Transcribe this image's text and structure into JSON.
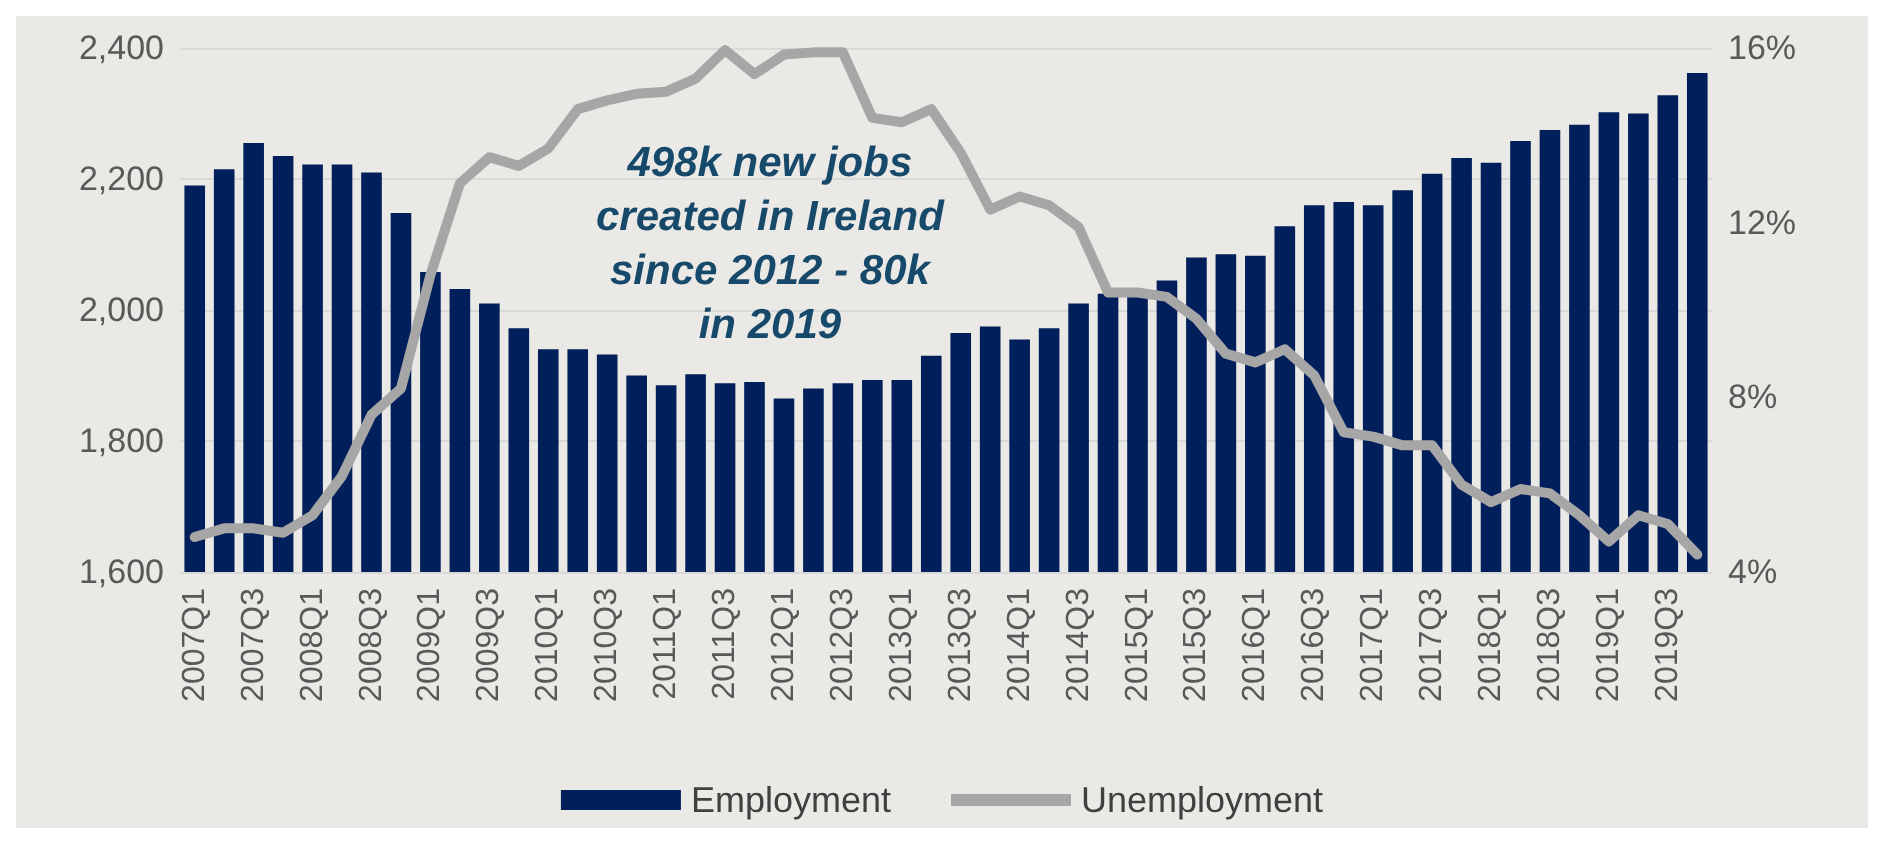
{
  "chart_data": {
    "type": "bar",
    "categories": [
      "2007Q1",
      null,
      "2007Q3",
      null,
      "2008Q1",
      null,
      "2008Q3",
      null,
      "2009Q1",
      null,
      "2009Q3",
      null,
      "2010Q1",
      null,
      "2010Q3",
      null,
      "2011Q1",
      null,
      "2011Q3",
      null,
      "2012Q1",
      null,
      "2012Q3",
      null,
      "2013Q1",
      null,
      "2013Q3",
      null,
      "2014Q1",
      null,
      "2014Q3",
      null,
      "2015Q1",
      null,
      "2015Q3",
      null,
      "2016Q1",
      null,
      "2016Q3",
      null,
      "2017Q1",
      null,
      "2017Q3",
      null,
      "2018Q1",
      null,
      "2018Q3",
      null,
      "2019Q1",
      null,
      "2019Q3",
      null
    ],
    "series": [
      {
        "name": "Employment",
        "color": "#001f5b",
        "values": [
          2190,
          2215,
          2255,
          2235,
          2222,
          2222,
          2210,
          2148,
          2058,
          2032,
          2010,
          1972,
          1940,
          1940,
          1932,
          1900,
          1885,
          1902,
          1888,
          1890,
          1865,
          1880,
          1888,
          1893,
          1893,
          1930,
          1965,
          1975,
          1955,
          1972,
          2010,
          2025,
          2025,
          2045,
          2080,
          2085,
          2083,
          2128,
          2160,
          2165,
          2160,
          2183,
          2208,
          2232,
          2225,
          2258,
          2275,
          2283,
          2302,
          2300,
          2328,
          2362
        ]
      },
      {
        "name": "Unemployment",
        "type": "line",
        "axis": "y2",
        "color": "#a6a6a6",
        "values": [
          4.8,
          5.0,
          5.0,
          4.9,
          5.3,
          6.2,
          7.6,
          8.2,
          10.8,
          12.9,
          13.5,
          13.3,
          13.7,
          14.6,
          14.8,
          14.95,
          15.0,
          15.3,
          15.95,
          15.4,
          15.85,
          15.9,
          15.9,
          14.4,
          14.3,
          14.6,
          13.6,
          12.3,
          12.6,
          12.4,
          11.9,
          10.4,
          10.4,
          10.3,
          9.8,
          9.0,
          8.8,
          9.1,
          8.5,
          7.2,
          7.1,
          6.9,
          6.9,
          6.0,
          5.6,
          5.9,
          5.8,
          5.3,
          4.7,
          5.3,
          5.1,
          4.4
        ]
      }
    ],
    "ylim": [
      1600,
      2400
    ],
    "yticks": [
      {
        "value": 1600,
        "label": "1,600"
      },
      {
        "value": 1800,
        "label": "1,800"
      },
      {
        "value": 2000,
        "label": "2,000"
      },
      {
        "value": 2200,
        "label": "2,200"
      },
      {
        "value": 2400,
        "label": "2,400"
      }
    ],
    "y2lim": [
      4,
      16
    ],
    "y2ticks": [
      {
        "value": 4,
        "label": "4%"
      },
      {
        "value": 8,
        "label": "8%"
      },
      {
        "value": 12,
        "label": "12%"
      },
      {
        "value": 16,
        "label": "16%"
      }
    ],
    "annotations": [
      "498k new jobs\ncreated in Ireland\nsince 2012 - 80k\nin 2019"
    ],
    "grid": "y",
    "legend": "bottom",
    "marker": "none",
    "line_style": "solid"
  }
}
